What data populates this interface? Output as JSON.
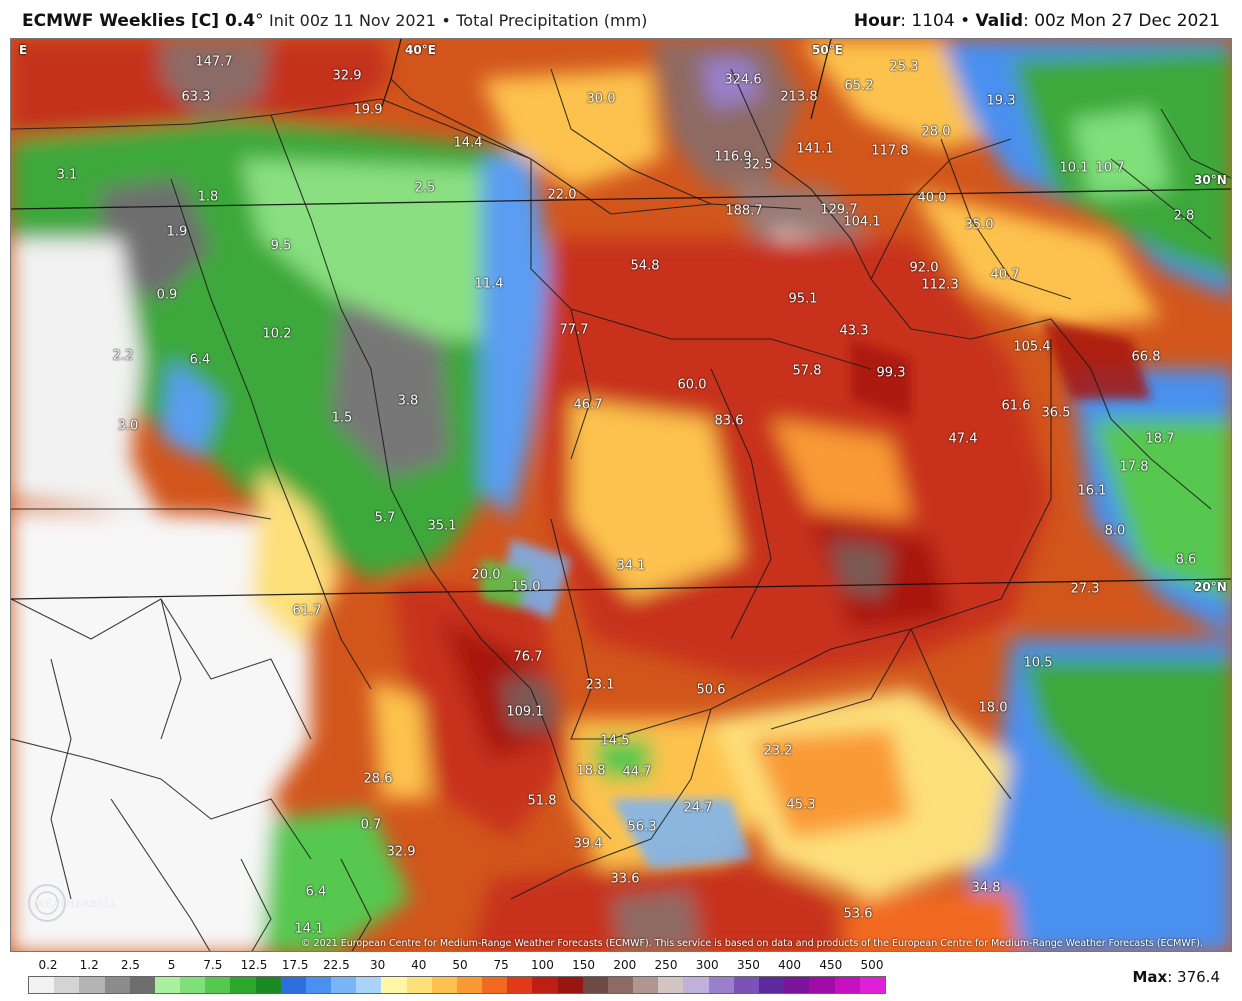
{
  "header": {
    "model": "ECMWF Weeklies [C] 0.4",
    "degree": "°",
    "init": "Init 00z 11 Nov 2021",
    "sep": "•",
    "field": "Total Precipitation (mm)",
    "hour_label": "Hour",
    "hour_value": ": 1104",
    "valid_label": "Valid",
    "valid_value": ": 00z Mon 27 Dec 2021"
  },
  "grid_labels": [
    "40°E",
    "50°E",
    "30°N",
    "20°N",
    "E"
  ],
  "map_values": [
    "147.7",
    "32.9",
    "63.3",
    "19.9",
    "30.0",
    "324.6",
    "213.8",
    "65.2",
    "25.3",
    "19.3",
    "28.0",
    "116.9",
    "32.5",
    "141.1",
    "117.8",
    "10.1",
    "10.7",
    "14.4",
    "2.5",
    "22.0",
    "188.7",
    "129.7",
    "104.1",
    "40.0",
    "35.0",
    "2.8",
    "3.1",
    "1.9",
    "9.5",
    "1.8",
    "54.8",
    "92.0",
    "112.3",
    "40.7",
    "11.4",
    "0.9",
    "95.1",
    "10.2",
    "77.7",
    "43.3",
    "105.4",
    "66.8",
    "2.2",
    "6.4",
    "60.0",
    "57.8",
    "99.3",
    "3.8",
    "1.5",
    "46.7",
    "83.6",
    "61.6",
    "36.5",
    "47.4",
    "18.7",
    "3.0",
    "17.8",
    "16.1",
    "8.0",
    "5.7",
    "35.1",
    "34.1",
    "8.6",
    "20.0",
    "15.0",
    "27.3",
    "61.7",
    "76.7",
    "10.5",
    "23.1",
    "50.6",
    "109.1",
    "18.0",
    "14.5",
    "23.2",
    "28.6",
    "18.8",
    "44.7",
    "24.7",
    "0.7",
    "39.4",
    "56.3",
    "32.9",
    "6.4",
    "14.1",
    "53.6",
    "34.8",
    "33.6",
    "51.8",
    "45.3"
  ],
  "copyright": "© 2021 European Centre for Medium-Range Weather Forecasts (ECMWF). This service is based on data and products of the European Centre for Medium-Range Weather Forecasts (ECMWF).",
  "watermark": "WEATHERBELL",
  "legend": {
    "ticks": [
      "0.2",
      "1.2",
      "2.5",
      "5",
      "7.5",
      "12.5",
      "17.5",
      "22.5",
      "30",
      "40",
      "50",
      "75",
      "100",
      "150",
      "200",
      "250",
      "300",
      "350",
      "400",
      "450",
      "500"
    ],
    "colors": [
      "#f2f2f2",
      "#d4d4d4",
      "#b4b4b4",
      "#8c8c8c",
      "#6e6e6e",
      "#a8f0a0",
      "#7fe07a",
      "#56c84f",
      "#2ea82c",
      "#1a8a22",
      "#2e6fe0",
      "#4a90f0",
      "#79b4f7",
      "#a8d3fb",
      "#fff6a8",
      "#fde07a",
      "#fdc24e",
      "#f99a34",
      "#f26a22",
      "#e03a18",
      "#bf1f12",
      "#991510",
      "#6e4a44",
      "#8e6a64",
      "#b09590",
      "#d2c4c0",
      "#c0b0dc",
      "#9a80cc",
      "#7a52b8",
      "#5a2a9e",
      "#7a149a",
      "#a00ca8",
      "#c410c0",
      "#e020d8"
    ]
  },
  "max_label": "Max",
  "max_value": ": 376.4"
}
